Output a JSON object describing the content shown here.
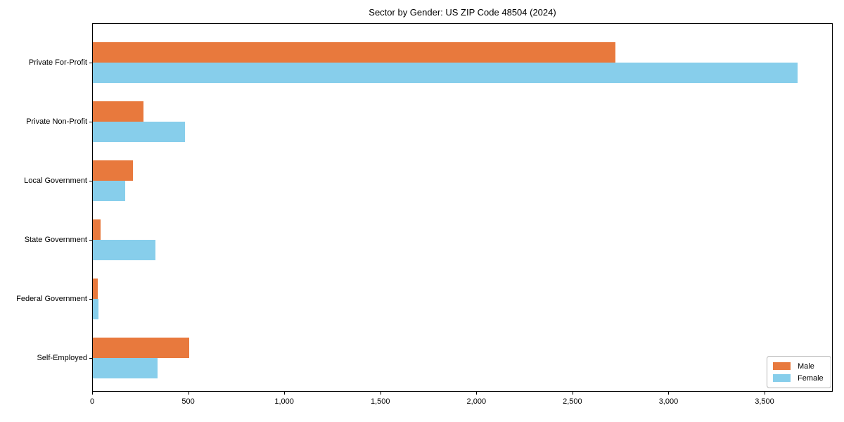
{
  "chart_data": {
    "type": "bar",
    "orientation": "horizontal",
    "title": "Sector by Gender: US ZIP Code 48504 (2024)",
    "categories": [
      "Private For-Profit",
      "Private Non-Profit",
      "Local Government",
      "State Government",
      "Federal Government",
      "Self-Employed"
    ],
    "series": [
      {
        "name": "Male",
        "color": "#e8793d",
        "values": [
          2720,
          265,
          207,
          42,
          27,
          503
        ]
      },
      {
        "name": "Female",
        "color": "#87ceeb",
        "values": [
          3670,
          478,
          167,
          325,
          31,
          335
        ]
      }
    ],
    "xlabel": "",
    "ylabel": "",
    "xlim": [
      0,
      3855
    ],
    "xticks": [
      0,
      500,
      1000,
      1500,
      2000,
      2500,
      3000,
      3500
    ],
    "xtick_labels": [
      "0",
      "500",
      "1,000",
      "1,500",
      "2,000",
      "2,500",
      "3,000",
      "3,500"
    ],
    "legend_position": "lower right",
    "grid": false
  },
  "colors": {
    "male_bar": "#e8793d",
    "female_bar": "#87ceeb",
    "axis": "#000000",
    "background": "#ffffff",
    "legend_border": "#b8b8b8",
    "text": "#000000"
  }
}
